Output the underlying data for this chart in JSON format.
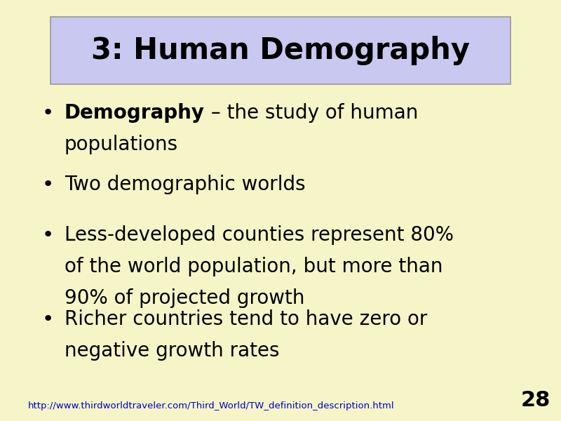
{
  "background_color": "#f5f5c8",
  "title_box_color": "#c8c8f0",
  "title_box_edge_color": "#999999",
  "title_text": "3: Human Demography",
  "title_fontsize": 30,
  "title_color": "#000000",
  "bullet_points": [
    {
      "bold_part": "Demography",
      "rest": " – the study of human\npopulations"
    },
    {
      "bold_part": "",
      "rest": "Two demographic worlds"
    },
    {
      "bold_part": "",
      "rest": "Less-developed counties represent 80%\nof the world population, but more than\n90% of projected growth"
    },
    {
      "bold_part": "",
      "rest": "Richer countries tend to have zero or\nnegative growth rates"
    }
  ],
  "bullet_fontsize": 20,
  "bullet_color": "#000000",
  "footer_url": "http://www.thirdworldtraveler.com/Third_World/TW_definition_description.html",
  "footer_url_color": "#0000cc",
  "footer_fontsize": 9.5,
  "page_number": "28",
  "page_number_fontsize": 22,
  "page_number_color": "#000000",
  "fig_width": 8.0,
  "fig_height": 6.0,
  "dpi": 100
}
